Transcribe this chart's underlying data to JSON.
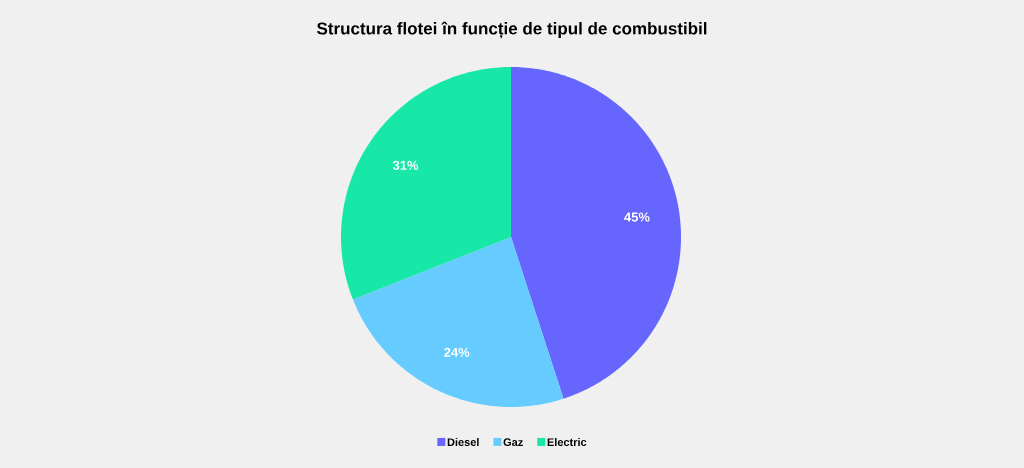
{
  "chart_data": {
    "type": "pie",
    "title": "Structura flotei în funcție de tipul de combustibil",
    "categories": [
      "Diesel",
      "Gaz",
      "Electric"
    ],
    "values": [
      45,
      24,
      31
    ],
    "value_labels": [
      "45%",
      "24%",
      "31%"
    ],
    "colors": [
      "#6666ff",
      "#66ccff",
      "#17e8a8"
    ],
    "legend": "bottom"
  }
}
